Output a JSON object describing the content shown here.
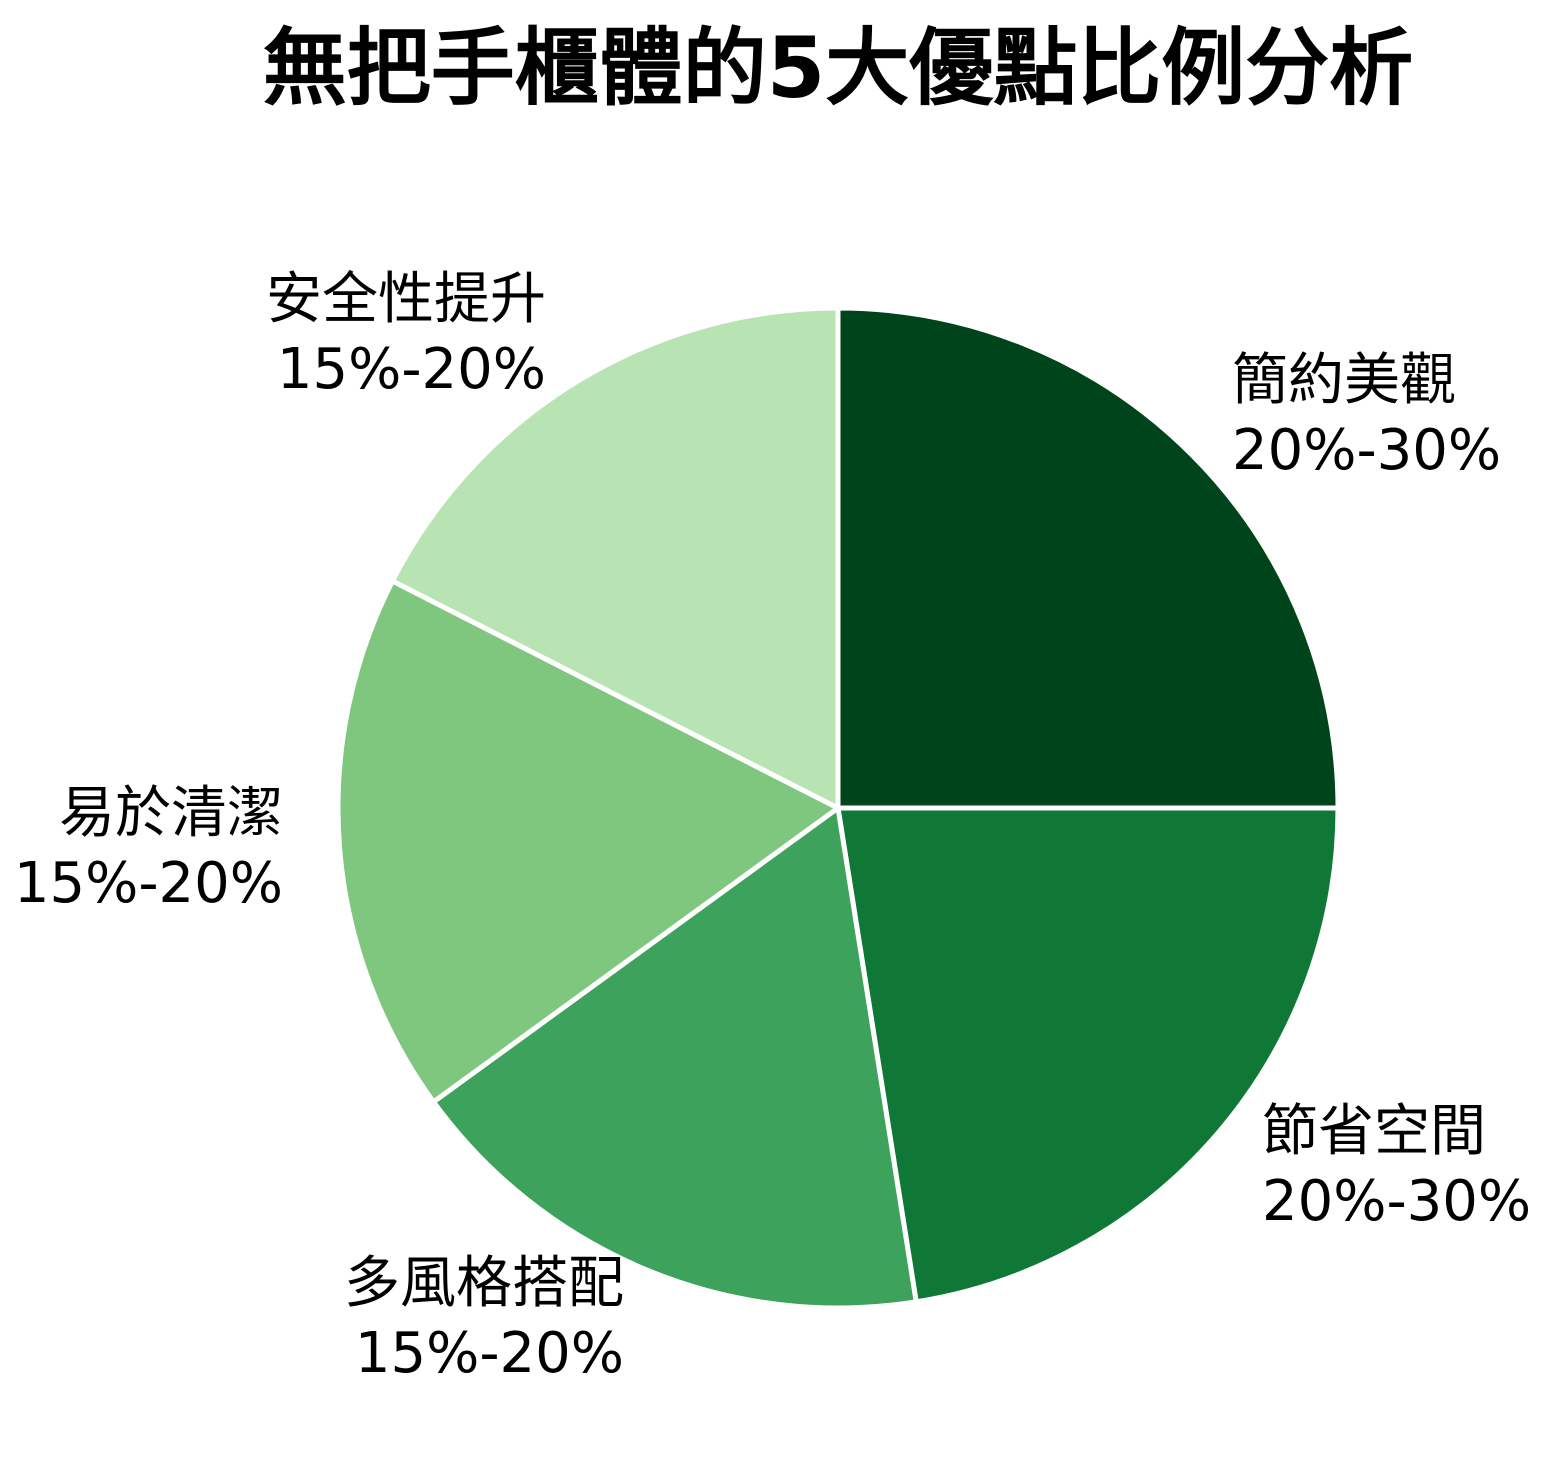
{
  "chart_data": {
    "type": "pie",
    "title": "無把手櫃體的5大優點比例分析",
    "slices": [
      {
        "label": "簡約美觀",
        "range_text": "20%-30%",
        "value": 25,
        "color": "#00441b"
      },
      {
        "label": "節省空間",
        "range_text": "20%-30%",
        "value": 22.5,
        "color": "#0f7837"
      },
      {
        "label": "多風格搭配",
        "range_text": "15%-20%",
        "value": 17.5,
        "color": "#3da35c"
      },
      {
        "label": "易於清潔",
        "range_text": "15%-20%",
        "value": 17.5,
        "color": "#7fc77f"
      },
      {
        "label": "安全性提升",
        "range_text": "15%-20%",
        "value": 17.5,
        "color": "#b8e3b3"
      }
    ],
    "start_angle": "12 o'clock",
    "direction": "clockwise",
    "legend": "none"
  }
}
